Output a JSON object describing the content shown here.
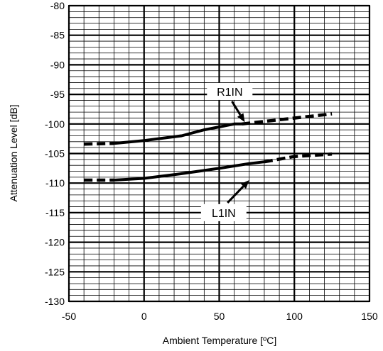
{
  "chart_data": {
    "type": "line",
    "title": "",
    "xlabel": "Ambient Temperature [ºC]",
    "ylabel": "Attenuation Level [dB]",
    "xlim": [
      -50,
      150
    ],
    "ylim": [
      -130,
      -80
    ],
    "x_major_ticks": [
      -50,
      0,
      50,
      100,
      150
    ],
    "x_tick_labels": [
      "-50",
      "0",
      "50",
      "100",
      "150"
    ],
    "y_major_ticks": [
      -80,
      -85,
      -90,
      -95,
      -100,
      -105,
      -110,
      -115,
      -120,
      -125,
      -130
    ],
    "y_tick_labels": [
      "-80",
      "-85",
      "-90",
      "-95",
      "-100",
      "-105",
      "-110",
      "-115",
      "-120",
      "-125",
      "-130"
    ],
    "x_minor_step": 10,
    "y_minor_step": 1,
    "grid": true,
    "series": [
      {
        "name": "R1IN",
        "solid": {
          "x": [
            -20,
            0,
            25,
            40,
            50,
            60,
            65
          ],
          "y": [
            -103.3,
            -102.8,
            -102.0,
            -101.0,
            -100.5,
            -100.0,
            -100.0
          ]
        },
        "dashed_left": {
          "x": [
            -40,
            -20
          ],
          "y": [
            -103.4,
            -103.3
          ]
        },
        "dashed_right": {
          "x": [
            65,
            100,
            125
          ],
          "y": [
            -100.0,
            -99.0,
            -98.3
          ]
        }
      },
      {
        "name": "L1IN",
        "solid": {
          "x": [
            -20,
            0,
            25,
            50,
            70,
            80
          ],
          "y": [
            -109.5,
            -109.2,
            -108.4,
            -107.5,
            -106.7,
            -106.4
          ]
        },
        "dashed_left": {
          "x": [
            -40,
            -20
          ],
          "y": [
            -109.5,
            -109.5
          ]
        },
        "dashed_right": {
          "x": [
            80,
            100,
            125
          ],
          "y": [
            -106.4,
            -105.5,
            -105.1
          ]
        }
      }
    ],
    "annotations": [
      {
        "text": "R1IN",
        "x": 57,
        "y": -94.5,
        "arrow_to": [
          67,
          -99.7
        ]
      },
      {
        "text": "L1IN",
        "x": 53,
        "y": -115,
        "arrow_to": [
          70,
          -109.5
        ]
      }
    ]
  }
}
